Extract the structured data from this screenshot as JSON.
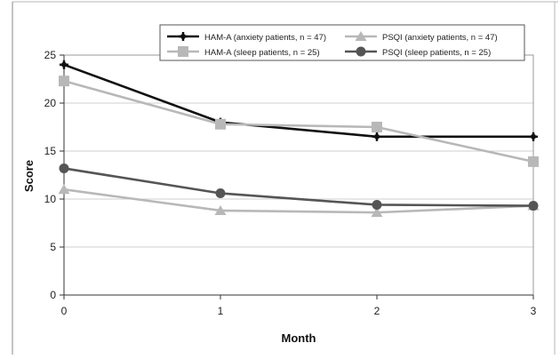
{
  "chart_data": {
    "type": "line",
    "title": "",
    "xlabel": "Month",
    "ylabel": "Score",
    "x": [
      0,
      1,
      2,
      3
    ],
    "x_ticks": [
      "0",
      "1",
      "2",
      "3"
    ],
    "y_ticks": [
      "0",
      "5",
      "10",
      "15",
      "20",
      "25"
    ],
    "ylim": [
      0,
      25
    ],
    "grid": "horizontal",
    "legend_placement": "top",
    "series": [
      {
        "name": "HAM-A (anxiety patients, n = 47)",
        "values": [
          24.0,
          18.0,
          16.5,
          16.5
        ],
        "color": "#111111",
        "marker": "plus"
      },
      {
        "name": "PSQI (anxiety patients, n = 47)",
        "values": [
          11.0,
          8.8,
          8.6,
          9.3
        ],
        "color": "#b8b8b8",
        "marker": "triangle"
      },
      {
        "name": "HAM-A (sleep patients, n = 25)",
        "values": [
          22.3,
          17.8,
          17.5,
          13.9
        ],
        "color": "#b8b8b8",
        "marker": "square"
      },
      {
        "name": "PSQI (sleep patients, n = 25)",
        "values": [
          13.2,
          10.6,
          9.4,
          9.3
        ],
        "color": "#555555",
        "marker": "circle"
      }
    ]
  }
}
